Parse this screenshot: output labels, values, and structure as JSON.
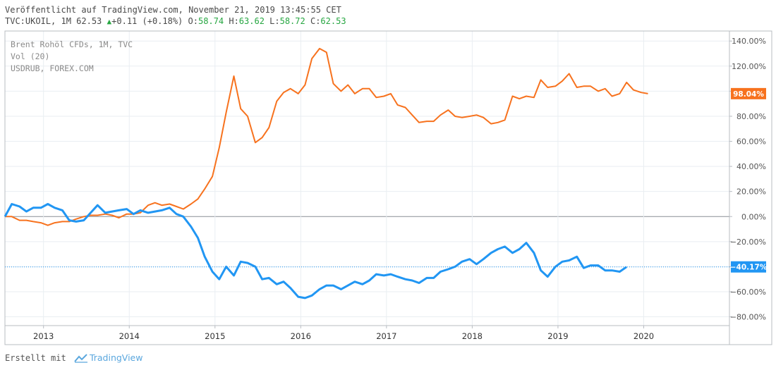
{
  "header": {
    "published": "Veröffentlicht auf TradingView.com, November 21, 2019 13:45:55 CET",
    "symbol": "TVC:UKOIL, 1M 62.53",
    "change": "+0.11 (+0.18%)",
    "o_label": "O:",
    "o_value": "58.74",
    "h_label": "H:",
    "h_value": "63.62",
    "l_label": "L:",
    "l_value": "58.72",
    "c_label": "C:",
    "c_value": "62.53"
  },
  "legend": {
    "line1": "Brent Rohöl CFDs, 1M, TVC",
    "line2": "Vol (20)",
    "line3": "USDRUB, FOREX.COM"
  },
  "footer": {
    "created_with": "Erstellt mit",
    "brand": "TradingView"
  },
  "colors": {
    "series_brent": "#f7721e",
    "series_usdrub": "#2196f3",
    "grid": "#e9eef2",
    "axis_text": "#555555"
  },
  "chart_data": {
    "type": "line",
    "x_unit": "year",
    "xlim": [
      2012.55,
      2021.0
    ],
    "ylim": [
      -87,
      148
    ],
    "y_ticks": [
      140,
      120,
      100,
      80,
      60,
      40,
      20,
      0,
      -20,
      -40,
      -60,
      -80
    ],
    "y_tick_labels": [
      "140.00%",
      "120.00%",
      "100.00%",
      "80.00%",
      "60.00%",
      "40.00%",
      "20.00%",
      "0.00%",
      "−20.00%",
      "−40.00%",
      "−60.00%",
      "−80.00%"
    ],
    "x_ticks": [
      2013,
      2014,
      2015,
      2016,
      2017,
      2018,
      2019,
      2020
    ],
    "x_tick_labels": [
      "2013",
      "2014",
      "2015",
      "2016",
      "2017",
      "2018",
      "2019",
      "2020"
    ],
    "series": [
      {
        "name": "USDRUB, FOREX.COM",
        "color": "#f7721e",
        "last_label": "98.04%",
        "last_value": 98.04,
        "points": [
          [
            2012.55,
            0
          ],
          [
            2012.63,
            0
          ],
          [
            2012.72,
            -3
          ],
          [
            2012.8,
            -3
          ],
          [
            2012.88,
            -4
          ],
          [
            2012.97,
            -5
          ],
          [
            2013.05,
            -7
          ],
          [
            2013.13,
            -5
          ],
          [
            2013.22,
            -4
          ],
          [
            2013.3,
            -4
          ],
          [
            2013.38,
            -2
          ],
          [
            2013.47,
            0
          ],
          [
            2013.55,
            1
          ],
          [
            2013.63,
            1
          ],
          [
            2013.72,
            2
          ],
          [
            2013.8,
            1
          ],
          [
            2013.88,
            -1
          ],
          [
            2013.97,
            2
          ],
          [
            2014.05,
            2
          ],
          [
            2014.13,
            3
          ],
          [
            2014.22,
            9
          ],
          [
            2014.3,
            11
          ],
          [
            2014.38,
            9
          ],
          [
            2014.47,
            10
          ],
          [
            2014.55,
            8
          ],
          [
            2014.63,
            6
          ],
          [
            2014.72,
            10
          ],
          [
            2014.8,
            14
          ],
          [
            2014.88,
            22
          ],
          [
            2014.97,
            32
          ],
          [
            2015.05,
            55
          ],
          [
            2015.13,
            83
          ],
          [
            2015.22,
            112
          ],
          [
            2015.3,
            86
          ],
          [
            2015.38,
            80
          ],
          [
            2015.47,
            59
          ],
          [
            2015.55,
            63
          ],
          [
            2015.63,
            71
          ],
          [
            2015.72,
            92
          ],
          [
            2015.8,
            99
          ],
          [
            2015.88,
            102
          ],
          [
            2015.97,
            98
          ],
          [
            2016.05,
            105
          ],
          [
            2016.13,
            126
          ],
          [
            2016.22,
            134
          ],
          [
            2016.3,
            131
          ],
          [
            2016.38,
            106
          ],
          [
            2016.47,
            100
          ],
          [
            2016.55,
            105
          ],
          [
            2016.63,
            98
          ],
          [
            2016.72,
            102
          ],
          [
            2016.8,
            102
          ],
          [
            2016.88,
            95
          ],
          [
            2016.97,
            96
          ],
          [
            2017.05,
            98
          ],
          [
            2017.13,
            89
          ],
          [
            2017.22,
            87
          ],
          [
            2017.3,
            81
          ],
          [
            2017.38,
            75
          ],
          [
            2017.47,
            76
          ],
          [
            2017.55,
            76
          ],
          [
            2017.63,
            81
          ],
          [
            2017.72,
            85
          ],
          [
            2017.8,
            80
          ],
          [
            2017.88,
            79
          ],
          [
            2017.97,
            80
          ],
          [
            2018.05,
            81
          ],
          [
            2018.13,
            79
          ],
          [
            2018.22,
            74
          ],
          [
            2018.3,
            75
          ],
          [
            2018.38,
            77
          ],
          [
            2018.47,
            96
          ],
          [
            2018.55,
            94
          ],
          [
            2018.63,
            96
          ],
          [
            2018.72,
            95
          ],
          [
            2018.8,
            109
          ],
          [
            2018.88,
            103
          ],
          [
            2018.97,
            104
          ],
          [
            2019.05,
            108
          ],
          [
            2019.13,
            114
          ],
          [
            2019.22,
            103
          ],
          [
            2019.3,
            104
          ],
          [
            2019.38,
            104
          ],
          [
            2019.47,
            100
          ],
          [
            2019.55,
            102
          ],
          [
            2019.63,
            96
          ],
          [
            2019.72,
            98
          ],
          [
            2019.8,
            107
          ],
          [
            2019.88,
            101
          ],
          [
            2019.97,
            99
          ],
          [
            2020.05,
            98.04
          ]
        ]
      },
      {
        "name": "Brent Rohöl CFDs, 1M, TVC",
        "color": "#2196f3",
        "last_label": "−40.17%",
        "last_value": -40.17,
        "points": [
          [
            2012.55,
            0
          ],
          [
            2012.63,
            10
          ],
          [
            2012.72,
            8
          ],
          [
            2012.8,
            4
          ],
          [
            2012.88,
            7
          ],
          [
            2012.97,
            7
          ],
          [
            2013.05,
            10
          ],
          [
            2013.13,
            7
          ],
          [
            2013.22,
            5
          ],
          [
            2013.3,
            -3
          ],
          [
            2013.38,
            -4
          ],
          [
            2013.47,
            -3
          ],
          [
            2013.55,
            3
          ],
          [
            2013.63,
            9
          ],
          [
            2013.72,
            3
          ],
          [
            2013.8,
            4
          ],
          [
            2013.88,
            5
          ],
          [
            2013.97,
            6
          ],
          [
            2014.05,
            2
          ],
          [
            2014.13,
            5
          ],
          [
            2014.22,
            3
          ],
          [
            2014.3,
            4
          ],
          [
            2014.38,
            5
          ],
          [
            2014.47,
            7
          ],
          [
            2014.55,
            2
          ],
          [
            2014.63,
            0
          ],
          [
            2014.72,
            -8
          ],
          [
            2014.8,
            -17
          ],
          [
            2014.88,
            -32
          ],
          [
            2014.97,
            -44
          ],
          [
            2015.05,
            -50
          ],
          [
            2015.13,
            -40
          ],
          [
            2015.22,
            -47
          ],
          [
            2015.3,
            -36
          ],
          [
            2015.38,
            -37
          ],
          [
            2015.47,
            -40
          ],
          [
            2015.55,
            -50
          ],
          [
            2015.63,
            -49
          ],
          [
            2015.72,
            -54
          ],
          [
            2015.8,
            -52
          ],
          [
            2015.88,
            -57
          ],
          [
            2015.97,
            -64
          ],
          [
            2016.05,
            -65
          ],
          [
            2016.13,
            -63
          ],
          [
            2016.22,
            -58
          ],
          [
            2016.3,
            -55
          ],
          [
            2016.38,
            -55
          ],
          [
            2016.47,
            -58
          ],
          [
            2016.55,
            -55
          ],
          [
            2016.63,
            -52
          ],
          [
            2016.72,
            -54
          ],
          [
            2016.8,
            -51
          ],
          [
            2016.88,
            -46
          ],
          [
            2016.97,
            -47
          ],
          [
            2017.05,
            -46
          ],
          [
            2017.13,
            -48
          ],
          [
            2017.22,
            -50
          ],
          [
            2017.3,
            -51
          ],
          [
            2017.38,
            -53
          ],
          [
            2017.47,
            -49
          ],
          [
            2017.55,
            -49
          ],
          [
            2017.63,
            -44
          ],
          [
            2017.72,
            -42
          ],
          [
            2017.8,
            -40
          ],
          [
            2017.88,
            -36
          ],
          [
            2017.97,
            -34
          ],
          [
            2018.05,
            -38
          ],
          [
            2018.13,
            -34
          ],
          [
            2018.22,
            -29
          ],
          [
            2018.3,
            -26
          ],
          [
            2018.38,
            -24
          ],
          [
            2018.47,
            -29
          ],
          [
            2018.55,
            -26
          ],
          [
            2018.63,
            -21
          ],
          [
            2018.72,
            -29
          ],
          [
            2018.8,
            -43
          ],
          [
            2018.88,
            -48
          ],
          [
            2018.97,
            -40
          ],
          [
            2019.05,
            -36
          ],
          [
            2019.13,
            -35
          ],
          [
            2019.22,
            -32
          ],
          [
            2019.3,
            -41
          ],
          [
            2019.38,
            -39
          ],
          [
            2019.47,
            -39
          ],
          [
            2019.55,
            -43
          ],
          [
            2019.63,
            -43
          ],
          [
            2019.72,
            -44
          ],
          [
            2019.8,
            -40.17
          ]
        ]
      }
    ]
  }
}
